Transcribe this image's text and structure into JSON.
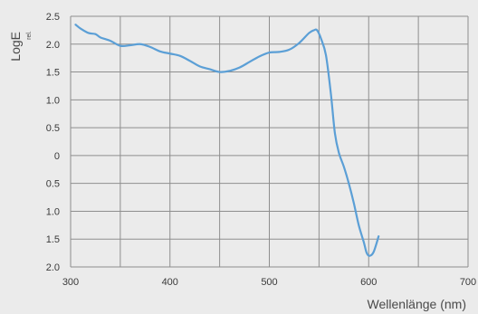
{
  "chart_data": {
    "type": "line",
    "title": "",
    "ylabel_main": "LogE",
    "ylabel_sub": "rel.",
    "xlabel": "Wellenlänge (nm)",
    "xlim": [
      300,
      700
    ],
    "ylim": [
      -2.0,
      2.5
    ],
    "x_ticks": [
      300,
      400,
      500,
      600,
      700
    ],
    "x_tick_labels": [
      "300",
      "400",
      "500",
      "600",
      "700"
    ],
    "y_ticks": [
      2.5,
      2.0,
      1.5,
      1.0,
      0.5,
      0,
      -0.5,
      -1.0,
      -1.5,
      -2.0
    ],
    "y_tick_labels": [
      "2.5",
      "2.0",
      "1.5",
      "1.0",
      "0.5",
      "0",
      "0.5",
      "1.0",
      "1.5",
      "2.0"
    ],
    "grid": true,
    "series": [
      {
        "color": "#5b9fd6",
        "x": [
          305,
          310,
          318,
          325,
          330,
          340,
          350,
          360,
          370,
          380,
          390,
          400,
          410,
          420,
          430,
          440,
          450,
          460,
          470,
          480,
          490,
          500,
          510,
          520,
          530,
          540,
          545,
          548,
          552,
          557,
          562,
          566,
          570,
          575,
          580,
          585,
          590,
          595,
          598,
          601,
          605,
          610
        ],
        "y": [
          2.35,
          2.28,
          2.2,
          2.18,
          2.12,
          2.06,
          1.97,
          1.98,
          2.0,
          1.95,
          1.87,
          1.83,
          1.79,
          1.7,
          1.6,
          1.55,
          1.5,
          1.52,
          1.58,
          1.68,
          1.78,
          1.85,
          1.86,
          1.9,
          2.02,
          2.2,
          2.25,
          2.25,
          2.1,
          1.8,
          1.1,
          0.4,
          0.05,
          -0.2,
          -0.5,
          -0.85,
          -1.25,
          -1.55,
          -1.75,
          -1.8,
          -1.73,
          -1.45
        ]
      }
    ]
  }
}
